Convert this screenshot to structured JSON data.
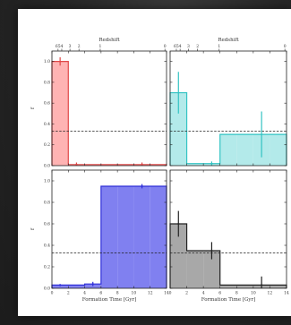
{
  "colors": {
    "panel1": {
      "fill": "#ffb3b3",
      "edge": "#e04848",
      "err": "#e04848"
    },
    "panel2": {
      "fill": "#b3eaea",
      "edge": "#33c3c3",
      "err": "#33c3c3"
    },
    "panel3": {
      "fill": "#8080f0",
      "edge": "#2e2ed8",
      "err": "#2e2ed8"
    },
    "panel4": {
      "fill": "#a8a8a8",
      "edge": "#222222",
      "err": "#222222"
    }
  },
  "labels": {
    "top_axis": "Redshift",
    "bottom_axis": "Formation Time [Gyr]",
    "y_axis": "f"
  },
  "ticks": {
    "redshift": [
      "654",
      "3",
      "2",
      "1",
      "0"
    ],
    "time": [
      "0",
      "2",
      "4",
      "6",
      "8",
      "10",
      "12",
      "14"
    ],
    "fraction": [
      "0.0",
      "0.2",
      "0.4",
      "0.6",
      "0.8",
      "1.0"
    ]
  },
  "chart_data": [
    {
      "type": "bar",
      "panel": "top-left",
      "bins": [
        [
          0,
          2
        ],
        [
          2,
          4
        ],
        [
          4,
          6
        ],
        [
          6,
          8
        ],
        [
          8,
          10
        ],
        [
          10,
          12
        ],
        [
          12,
          14
        ]
      ],
      "values": [
        1.0,
        0.01,
        0.01,
        0.01,
        0.01,
        0.01,
        0.01
      ],
      "errors": [
        0.04,
        0.02,
        0.0,
        0.0,
        0.0,
        0.02,
        0.0
      ],
      "reference_line": 0.33,
      "xlabel": "",
      "ylabel": "f",
      "top_xlabel": "Redshift",
      "xlim": [
        0,
        14
      ],
      "ylim": [
        0,
        1.1
      ]
    },
    {
      "type": "bar",
      "panel": "top-right",
      "bins": [
        [
          0,
          2
        ],
        [
          2,
          4
        ],
        [
          4,
          6
        ],
        [
          6,
          8
        ],
        [
          8,
          10
        ],
        [
          10,
          12
        ],
        [
          12,
          14
        ]
      ],
      "values": [
        0.7,
        0.02,
        0.02,
        0.3,
        0.3,
        0.3,
        0.3
      ],
      "errors": [
        0.2,
        0.0,
        0.02,
        0.0,
        0.0,
        0.22,
        0.0
      ],
      "reference_line": 0.33,
      "xlabel": "",
      "ylabel": "",
      "top_xlabel": "Redshift",
      "xlim": [
        0,
        14
      ],
      "ylim": [
        0,
        1.1
      ]
    },
    {
      "type": "bar",
      "panel": "bottom-left",
      "bins": [
        [
          0,
          2
        ],
        [
          2,
          4
        ],
        [
          4,
          6
        ],
        [
          6,
          8
        ],
        [
          8,
          10
        ],
        [
          10,
          12
        ],
        [
          12,
          14
        ]
      ],
      "values": [
        0.03,
        0.03,
        0.04,
        0.95,
        0.95,
        0.95,
        0.95
      ],
      "errors": [
        0.01,
        0.0,
        0.02,
        0.0,
        0.0,
        0.02,
        0.0
      ],
      "reference_line": 0.33,
      "xlabel": "Formation Time [Gyr]",
      "ylabel": "f",
      "xlim": [
        0,
        14
      ],
      "ylim": [
        0,
        1.1
      ]
    },
    {
      "type": "bar",
      "panel": "bottom-right",
      "bins": [
        [
          0,
          2
        ],
        [
          2,
          4
        ],
        [
          4,
          6
        ],
        [
          6,
          8
        ],
        [
          8,
          10
        ],
        [
          10,
          12
        ],
        [
          12,
          14
        ]
      ],
      "values": [
        0.6,
        0.35,
        0.35,
        0.03,
        0.03,
        0.03,
        0.03
      ],
      "errors": [
        0.12,
        0.0,
        0.08,
        0.0,
        0.0,
        0.08,
        0.0
      ],
      "reference_line": 0.33,
      "xlabel": "Formation Time [Gyr]",
      "ylabel": "",
      "xlim": [
        0,
        14
      ],
      "ylim": [
        0,
        1.1
      ]
    }
  ]
}
